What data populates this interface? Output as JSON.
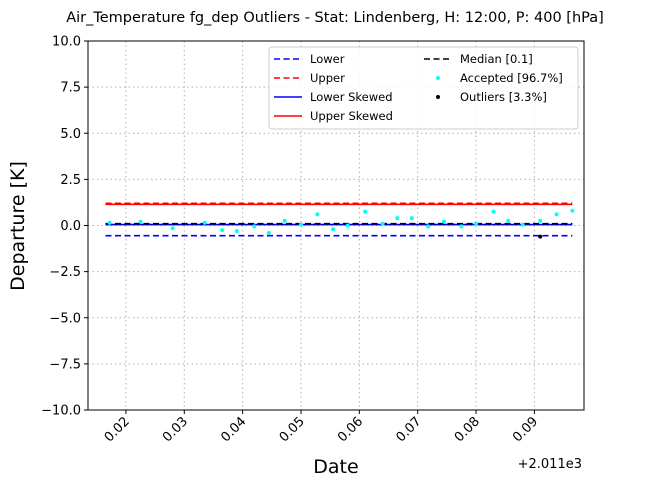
{
  "chart_data": {
    "type": "scatter",
    "title": "Air_Temperature fg_dep Outliers - Stat: Lindenberg, H: 12:00, P: 400 [hPa]",
    "xlabel": "Date",
    "ylabel": "Departure [K]",
    "x_offset_label": "+2.011e3",
    "xlim": [
      0.0135,
      0.0985
    ],
    "ylim": [
      -10,
      10
    ],
    "x_ticks": [
      0.02,
      0.03,
      0.04,
      0.05,
      0.06,
      0.07,
      0.08,
      0.09
    ],
    "x_tick_labels": [
      "0.02",
      "0.03",
      "0.04",
      "0.05",
      "0.06",
      "0.07",
      "0.08",
      "0.09"
    ],
    "y_ticks": [
      10,
      7.5,
      5,
      2.5,
      0,
      -2.5,
      -5,
      -7.5,
      -10
    ],
    "y_tick_labels": [
      "10.0",
      "7.5",
      "5.0",
      "2.5",
      "0.0",
      "−2.5",
      "−5.0",
      "−7.5",
      "−10.0"
    ],
    "grid": true,
    "legend_position": "upper right",
    "lines": [
      {
        "name": "Lower",
        "color": "#0000ff",
        "style": "dashed",
        "x": [
          0.0165,
          0.0965
        ],
        "y": [
          -0.55,
          -0.55
        ]
      },
      {
        "name": "Upper",
        "color": "#ff0000",
        "style": "dashed",
        "x": [
          0.0165,
          0.0965
        ],
        "y": [
          1.2,
          1.2
        ]
      },
      {
        "name": "Lower Skewed",
        "color": "#0000ff",
        "style": "solid",
        "x": [
          0.0165,
          0.0965
        ],
        "y": [
          0.05,
          0.05
        ]
      },
      {
        "name": "Upper Skewed",
        "color": "#ff0000",
        "style": "solid",
        "x": [
          0.0165,
          0.0965
        ],
        "y": [
          1.15,
          1.15
        ]
      },
      {
        "name": "Median [0.1]",
        "color": "#000000",
        "style": "dashed",
        "x": [
          0.0165,
          0.0965
        ],
        "y": [
          0.1,
          0.1
        ]
      }
    ],
    "series": [
      {
        "name": "Accepted [96.7%]",
        "color": "#00ffff",
        "x": [
          0.0172,
          0.0225,
          0.028,
          0.0335,
          0.0365,
          0.039,
          0.042,
          0.0445,
          0.0472,
          0.05,
          0.0528,
          0.0555,
          0.058,
          0.061,
          0.064,
          0.0665,
          0.069,
          0.0718,
          0.0745,
          0.0775,
          0.08,
          0.083,
          0.0855,
          0.088,
          0.091,
          0.0938,
          0.0965
        ],
        "y": [
          0.15,
          0.2,
          -0.15,
          0.15,
          -0.25,
          -0.3,
          -0.05,
          -0.4,
          0.25,
          0.05,
          0.6,
          -0.2,
          0.0,
          0.75,
          0.1,
          0.4,
          0.4,
          -0.05,
          0.2,
          -0.05,
          0.1,
          0.75,
          0.25,
          0.05,
          0.25,
          0.6,
          0.8
        ]
      },
      {
        "name": "Outliers [3.3%]",
        "color": "#000000",
        "x": [
          0.091
        ],
        "y": [
          -0.6
        ]
      }
    ],
    "legend_entries": [
      {
        "label": "Lower",
        "color": "#0000ff",
        "kind": "dashed"
      },
      {
        "label": "Upper",
        "color": "#ff0000",
        "kind": "dashed"
      },
      {
        "label": "Lower Skewed",
        "color": "#0000ff",
        "kind": "solid"
      },
      {
        "label": "Upper Skewed",
        "color": "#ff0000",
        "kind": "solid"
      },
      {
        "label": "Median [0.1]",
        "color": "#000000",
        "kind": "dashed"
      },
      {
        "label": "Accepted [96.7%]",
        "color": "#00ffff",
        "kind": "dot"
      },
      {
        "label": "Outliers [3.3%]",
        "color": "#000000",
        "kind": "dot"
      }
    ]
  }
}
